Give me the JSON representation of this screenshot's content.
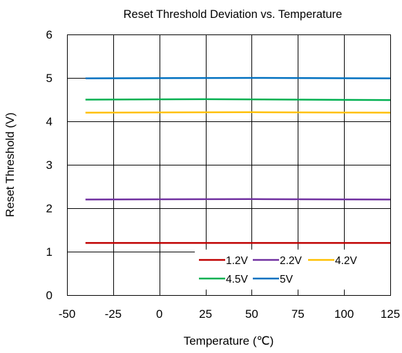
{
  "chart_data": {
    "type": "line",
    "title": "Reset Threshold Deviation vs. Temperature",
    "xlabel": "Temperature (℃)",
    "ylabel": "Reset Threshold (V)",
    "xlim": [
      -50,
      125
    ],
    "ylim": [
      0,
      6
    ],
    "xticks": [
      "-50",
      "-25",
      "0",
      "25",
      "50",
      "75",
      "100",
      "125"
    ],
    "yticks": [
      "0",
      "1",
      "2",
      "3",
      "4",
      "5",
      "6"
    ],
    "grid": true,
    "legend_position": "bottom-right",
    "series": [
      {
        "name": "1.2V",
        "color": "#c00000",
        "x": [
          -40,
          125
        ],
        "y": [
          1.2,
          1.2
        ]
      },
      {
        "name": "2.2V",
        "color": "#7030a0",
        "x": [
          -40,
          50,
          125
        ],
        "y": [
          2.2,
          2.21,
          2.2
        ]
      },
      {
        "name": "4.2V",
        "color": "#ffc000",
        "x": [
          -40,
          50,
          125
        ],
        "y": [
          4.2,
          4.21,
          4.2
        ]
      },
      {
        "name": "4.5V",
        "color": "#00b050",
        "x": [
          -40,
          25,
          125
        ],
        "y": [
          4.5,
          4.51,
          4.49
        ]
      },
      {
        "name": "5V",
        "color": "#0070c0",
        "x": [
          -40,
          50,
          125
        ],
        "y": [
          4.99,
          5.0,
          4.99
        ]
      }
    ]
  }
}
